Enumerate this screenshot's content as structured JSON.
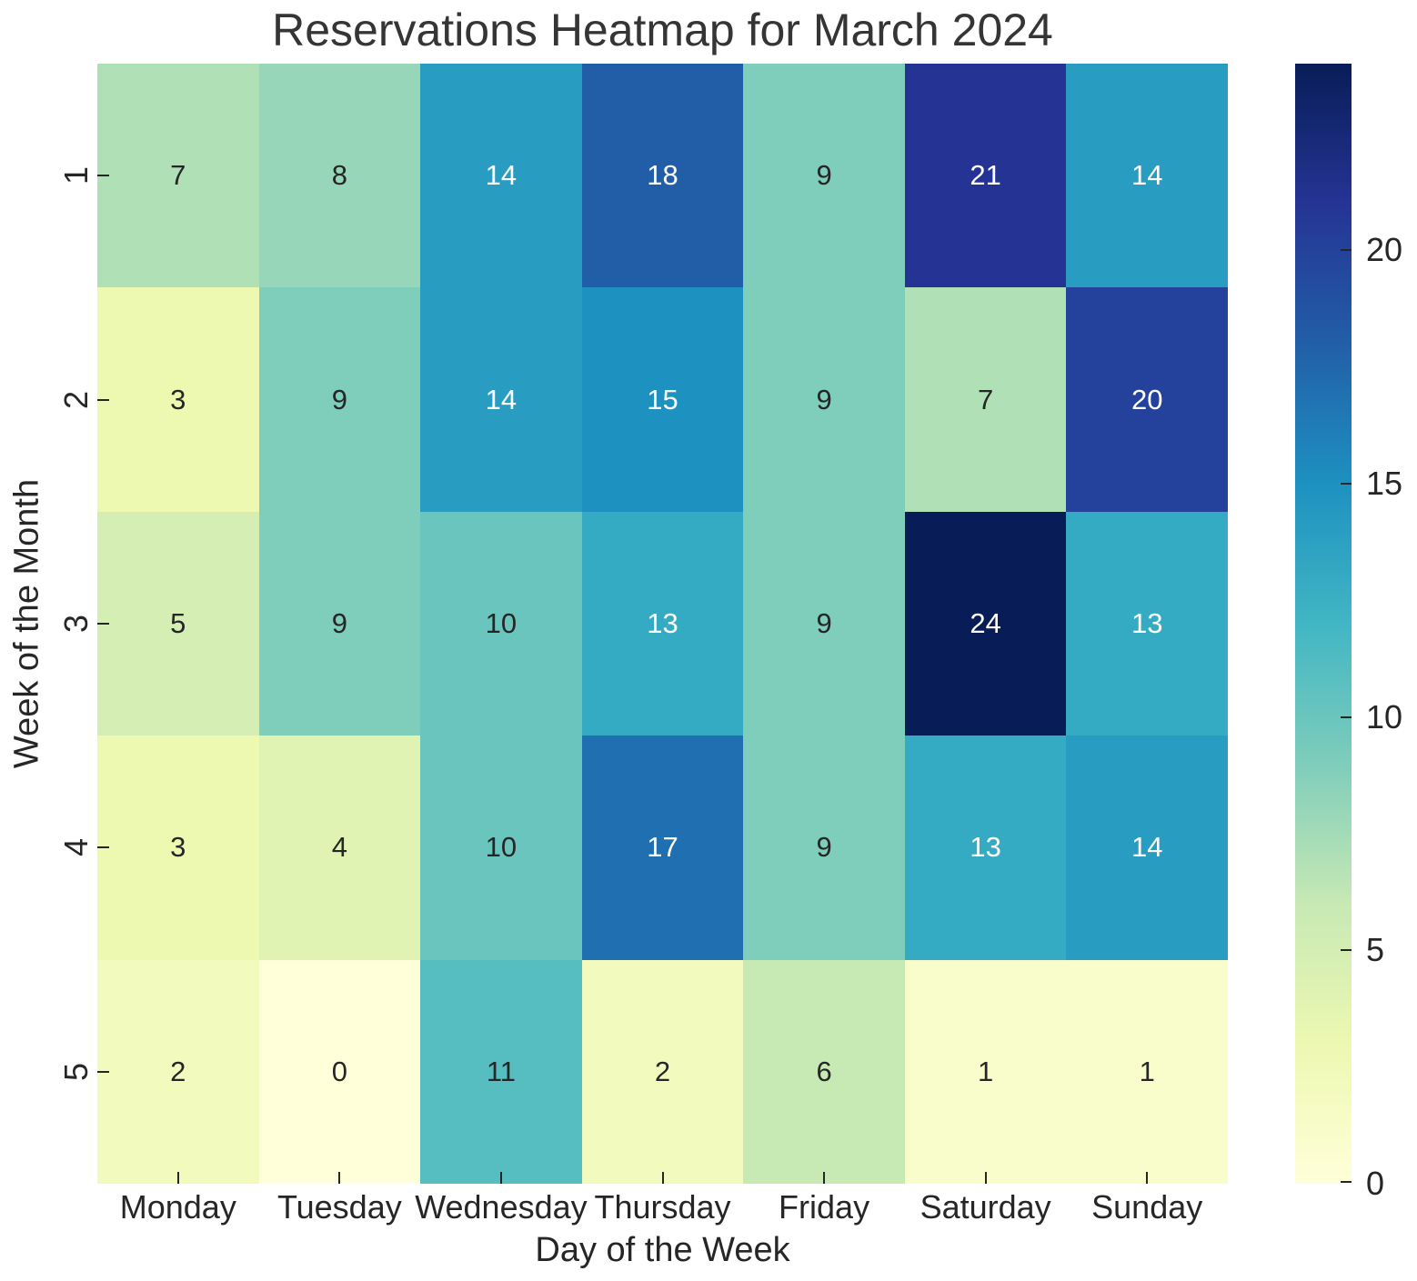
{
  "chart_data": {
    "type": "heatmap",
    "title": "Reservations Heatmap for March 2024",
    "xlabel": "Day of the Week",
    "ylabel": "Week of the Month",
    "x_categories": [
      "Monday",
      "Tuesday",
      "Wednesday",
      "Thursday",
      "Friday",
      "Saturday",
      "Sunday"
    ],
    "y_categories": [
      "1",
      "2",
      "3",
      "4",
      "5"
    ],
    "values": [
      [
        7,
        8,
        14,
        18,
        9,
        21,
        14
      ],
      [
        3,
        9,
        14,
        15,
        9,
        7,
        20
      ],
      [
        5,
        9,
        10,
        13,
        9,
        24,
        13
      ],
      [
        3,
        4,
        10,
        17,
        9,
        13,
        14
      ],
      [
        2,
        0,
        11,
        2,
        6,
        1,
        1
      ]
    ],
    "annotations_shown": true,
    "grid": false,
    "colorbar": {
      "position": "right",
      "ticks": [
        0,
        5,
        10,
        15,
        20
      ],
      "vmin": 0,
      "vmax": 24,
      "colormap": "YlGnBu",
      "stops": [
        "#ffffd9",
        "#edf8b1",
        "#c7e9b4",
        "#7fcdbb",
        "#41b6c4",
        "#1d91c0",
        "#225ea8",
        "#253494",
        "#081d58"
      ]
    },
    "annotation_text_colors": {
      "on_light": "#262626",
      "on_dark": "#ffffff"
    },
    "axis_text_color": "#262626",
    "title_color": "#353535",
    "background_color": "#ffffff"
  }
}
